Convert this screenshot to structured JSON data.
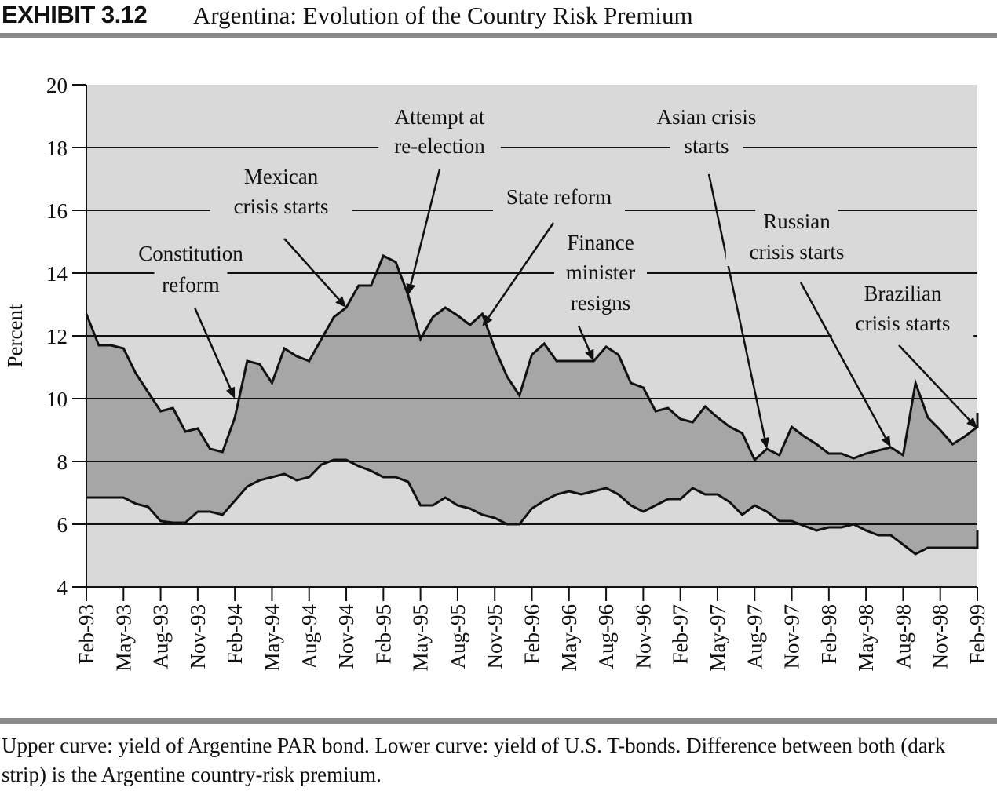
{
  "header": {
    "exhibit_number": "EXHIBIT 3.12",
    "title": "Argentina: Evolution of the Country Risk Premium"
  },
  "caption": "Upper curve: yield of Argentine PAR bond. Lower curve: yield of U.S. T-bonds. Difference between both (dark strip) is the Argentine country-risk premium.",
  "colors": {
    "plot_background": "#d9d9d9",
    "premium_strip": "#a6a6a6",
    "curve_line": "#111111",
    "grid_line": "#111111"
  },
  "chart_data": {
    "type": "area",
    "ylabel": "Percent",
    "ylim": [
      4,
      20
    ],
    "yticks": [
      4,
      6,
      8,
      10,
      12,
      14,
      16,
      18,
      20
    ],
    "grid": true,
    "xlim": [
      "Feb-93",
      "Feb-99"
    ],
    "x_tick_labels": [
      "Feb-93",
      "May-93",
      "Aug-93",
      "Nov-93",
      "Feb-94",
      "May-94",
      "Aug-94",
      "Nov-94",
      "Feb-95",
      "May-95",
      "Aug-95",
      "Nov-95",
      "Feb-96",
      "May-96",
      "Aug-96",
      "Nov-96",
      "Feb-97",
      "May-97",
      "Aug-97",
      "Nov-97",
      "Feb-98",
      "May-98",
      "Aug-98",
      "Nov-98",
      "Feb-99"
    ],
    "series": [
      {
        "name": "Upper curve: yield of Argentine PAR bond",
        "points": [
          [
            "Feb-93",
            12.7
          ],
          [
            "Mar-93",
            11.7
          ],
          [
            "Apr-93",
            11.7
          ],
          [
            "May-93",
            11.6
          ],
          [
            "Jun-93",
            10.8
          ],
          [
            "Jul-93",
            10.2
          ],
          [
            "Aug-93",
            9.6
          ],
          [
            "Sep-93",
            9.7
          ],
          [
            "Oct-93",
            8.95
          ],
          [
            "Nov-93",
            9.05
          ],
          [
            "Dec-93",
            8.4
          ],
          [
            "Jan-94",
            8.3
          ],
          [
            "Feb-94",
            9.4
          ],
          [
            "Mar-94",
            11.2
          ],
          [
            "Apr-94",
            11.1
          ],
          [
            "May-94",
            10.5
          ],
          [
            "Jun-94",
            11.6
          ],
          [
            "Jul-94",
            11.35
          ],
          [
            "Aug-94",
            11.2
          ],
          [
            "Sep-94",
            11.9
          ],
          [
            "Oct-94",
            12.6
          ],
          [
            "Nov-94",
            12.9
          ],
          [
            "Dec-94",
            13.6
          ],
          [
            "Jan-95",
            13.6
          ],
          [
            "Feb-95",
            14.55
          ],
          [
            "Mar-95",
            14.35
          ],
          [
            "Apr-95",
            13.3
          ],
          [
            "May-95",
            11.9
          ],
          [
            "Jun-95",
            12.6
          ],
          [
            "Jul-95",
            12.9
          ],
          [
            "Aug-95",
            12.65
          ],
          [
            "Sep-95",
            12.35
          ],
          [
            "Oct-95",
            12.7
          ],
          [
            "Nov-95",
            11.6
          ],
          [
            "Dec-95",
            10.7
          ],
          [
            "Jan-96",
            10.1
          ],
          [
            "Feb-96",
            11.4
          ],
          [
            "Mar-96",
            11.75
          ],
          [
            "Apr-96",
            11.2
          ],
          [
            "May-96",
            11.2
          ],
          [
            "Jun-96",
            11.2
          ],
          [
            "Jul-96",
            11.2
          ],
          [
            "Aug-96",
            11.65
          ],
          [
            "Sep-96",
            11.4
          ],
          [
            "Oct-96",
            10.5
          ],
          [
            "Nov-96",
            10.35
          ],
          [
            "Dec-96",
            9.6
          ],
          [
            "Jan-97",
            9.7
          ],
          [
            "Feb-97",
            9.35
          ],
          [
            "Mar-97",
            9.25
          ],
          [
            "Apr-97",
            9.75
          ],
          [
            "May-97",
            9.4
          ],
          [
            "Jun-97",
            9.1
          ],
          [
            "Jul-97",
            8.9
          ],
          [
            "Aug-97",
            8.05
          ],
          [
            "Sep-97",
            8.4
          ],
          [
            "Oct-97",
            8.2
          ],
          [
            "Nov-97",
            9.1
          ],
          [
            "Dec-97",
            8.8
          ],
          [
            "Jan-98",
            8.55
          ],
          [
            "Feb-98",
            8.25
          ],
          [
            "Mar-98",
            8.25
          ],
          [
            "Apr-98",
            8.1
          ],
          [
            "May-98",
            8.25
          ],
          [
            "Jun-98",
            8.35
          ],
          [
            "Jul-98",
            8.45
          ],
          [
            "Aug-98",
            8.2
          ],
          [
            "Sep-98",
            10.5
          ],
          [
            "Oct-98",
            9.4
          ],
          [
            "Nov-98",
            9.0
          ],
          [
            "Dec-98",
            8.55
          ],
          [
            "Jan-99",
            8.8
          ],
          [
            "Feb-99",
            9.1
          ],
          [
            "Mar-99",
            9.55
          ],
          [
            "Apr-99",
            9.05
          ]
        ]
      },
      {
        "name": "Lower curve: yield of U.S. T-bonds",
        "points": [
          [
            "Feb-93",
            6.85
          ],
          [
            "Mar-93",
            6.85
          ],
          [
            "Apr-93",
            6.85
          ],
          [
            "May-93",
            6.85
          ],
          [
            "Jun-93",
            6.65
          ],
          [
            "Jul-93",
            6.55
          ],
          [
            "Aug-93",
            6.1
          ],
          [
            "Sep-93",
            6.05
          ],
          [
            "Oct-93",
            6.05
          ],
          [
            "Nov-93",
            6.4
          ],
          [
            "Dec-93",
            6.4
          ],
          [
            "Jan-94",
            6.3
          ],
          [
            "Feb-94",
            6.75
          ],
          [
            "Mar-94",
            7.2
          ],
          [
            "Apr-94",
            7.4
          ],
          [
            "May-94",
            7.5
          ],
          [
            "Jun-94",
            7.6
          ],
          [
            "Jul-94",
            7.4
          ],
          [
            "Aug-94",
            7.5
          ],
          [
            "Sep-94",
            7.9
          ],
          [
            "Oct-94",
            8.05
          ],
          [
            "Nov-94",
            8.05
          ],
          [
            "Dec-94",
            7.85
          ],
          [
            "Jan-95",
            7.7
          ],
          [
            "Feb-95",
            7.5
          ],
          [
            "Mar-95",
            7.5
          ],
          [
            "Apr-95",
            7.35
          ],
          [
            "May-95",
            6.6
          ],
          [
            "Jun-95",
            6.6
          ],
          [
            "Jul-95",
            6.85
          ],
          [
            "Aug-95",
            6.6
          ],
          [
            "Sep-95",
            6.5
          ],
          [
            "Oct-95",
            6.3
          ],
          [
            "Nov-95",
            6.2
          ],
          [
            "Dec-95",
            6.0
          ],
          [
            "Jan-96",
            6.0
          ],
          [
            "Feb-96",
            6.5
          ],
          [
            "Mar-96",
            6.75
          ],
          [
            "Apr-96",
            6.95
          ],
          [
            "May-96",
            7.05
          ],
          [
            "Jun-96",
            6.95
          ],
          [
            "Jul-96",
            7.05
          ],
          [
            "Aug-96",
            7.15
          ],
          [
            "Sep-96",
            6.95
          ],
          [
            "Oct-96",
            6.6
          ],
          [
            "Nov-96",
            6.4
          ],
          [
            "Dec-96",
            6.6
          ],
          [
            "Jan-97",
            6.8
          ],
          [
            "Feb-97",
            6.8
          ],
          [
            "Mar-97",
            7.15
          ],
          [
            "Apr-97",
            6.95
          ],
          [
            "May-97",
            6.95
          ],
          [
            "Jun-97",
            6.7
          ],
          [
            "Jul-97",
            6.3
          ],
          [
            "Aug-97",
            6.6
          ],
          [
            "Sep-97",
            6.4
          ],
          [
            "Oct-97",
            6.1
          ],
          [
            "Nov-97",
            6.1
          ],
          [
            "Dec-97",
            5.95
          ],
          [
            "Jan-98",
            5.8
          ],
          [
            "Feb-98",
            5.9
          ],
          [
            "Mar-98",
            5.9
          ],
          [
            "Apr-98",
            6.0
          ],
          [
            "May-98",
            5.8
          ],
          [
            "Jun-98",
            5.65
          ],
          [
            "Jul-98",
            5.65
          ],
          [
            "Aug-98",
            5.35
          ],
          [
            "Sep-98",
            5.05
          ],
          [
            "Oct-98",
            5.25
          ],
          [
            "Nov-98",
            5.25
          ],
          [
            "Dec-98",
            5.25
          ],
          [
            "Jan-99",
            5.25
          ],
          [
            "Feb-99",
            5.25
          ],
          [
            "Mar-99",
            5.8
          ],
          [
            "Apr-99",
            5.8
          ]
        ]
      }
    ],
    "annotations": [
      {
        "text": [
          "Constitution",
          "reform"
        ],
        "target": [
          "Feb-94",
          10.0
        ]
      },
      {
        "text": [
          "Mexican",
          "crisis starts"
        ],
        "target": [
          "Nov-94",
          12.9
        ]
      },
      {
        "text": [
          "Attempt at",
          "re-election"
        ],
        "target": [
          "Apr-95",
          13.3
        ]
      },
      {
        "text": [
          "State reform"
        ],
        "target": [
          "Oct-95",
          12.3
        ]
      },
      {
        "text": [
          "Finance",
          "minister",
          "resigns"
        ],
        "target": [
          "Jul-96",
          11.2
        ]
      },
      {
        "text": [
          "Asian crisis",
          "starts"
        ],
        "target": [
          "Sep-97",
          8.4
        ]
      },
      {
        "text": [
          "Russian",
          "crisis starts"
        ],
        "target": [
          "Jul-98",
          8.45
        ]
      },
      {
        "text": [
          "Brazilian",
          "crisis starts"
        ],
        "target": [
          "Feb-99",
          9.05
        ]
      }
    ]
  }
}
